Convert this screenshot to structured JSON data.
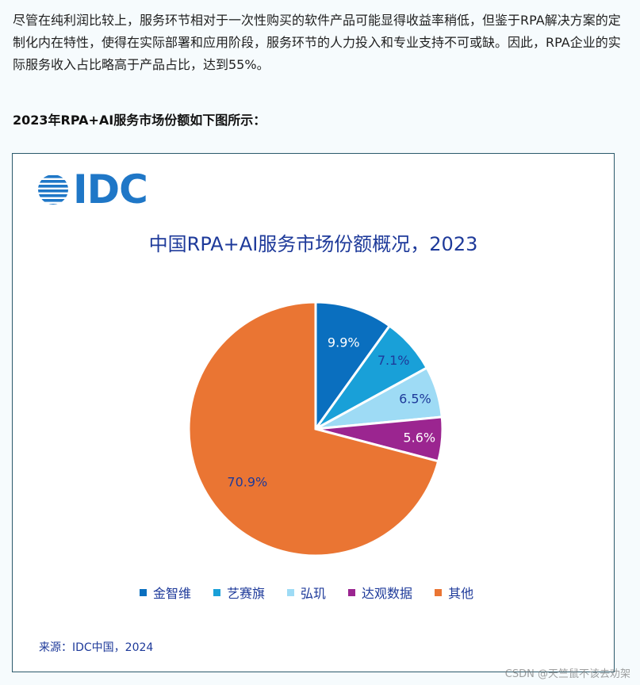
{
  "article": {
    "paragraph": "尽管在纯利润比较上，服务环节相对于一次性购买的软件产品可能显得收益率稍低，但鉴于RPA解决方案的定制化内在特性，使得在实际部署和应用阶段，服务环节的人力投入和专业支持不可或缺。因此，RPA企业的实际服务收入占比略高于产品占比，达到55%。",
    "subheading": "2023年RPA+AI服务市场份额如下图所示："
  },
  "figure": {
    "logo_text": "IDC",
    "source": "来源：IDC中国，2024"
  },
  "chart_data": {
    "type": "pie",
    "title": "中国RPA+AI服务市场份额概况，2023",
    "slices": [
      {
        "name": "金智维",
        "value": 9.9,
        "label": "9.9%",
        "color": "#0a6fbf",
        "label_color": "#ffffff"
      },
      {
        "name": "艺赛旗",
        "value": 7.1,
        "label": "7.1%",
        "color": "#19a0d8",
        "label_color": "#1e3a9a"
      },
      {
        "name": "弘玑",
        "value": 6.5,
        "label": "6.5%",
        "color": "#9edbf5",
        "label_color": "#1e3a9a"
      },
      {
        "name": "达观数据",
        "value": 5.6,
        "label": "5.6%",
        "color": "#9b2590",
        "label_color": "#ffffff"
      },
      {
        "name": "其他",
        "value": 70.9,
        "label": "70.9%",
        "color": "#ea7533",
        "label_color": "#1e3a9a"
      }
    ],
    "legend_position": "bottom"
  },
  "watermark": "CSDN @天竺鼠不该去劝架"
}
